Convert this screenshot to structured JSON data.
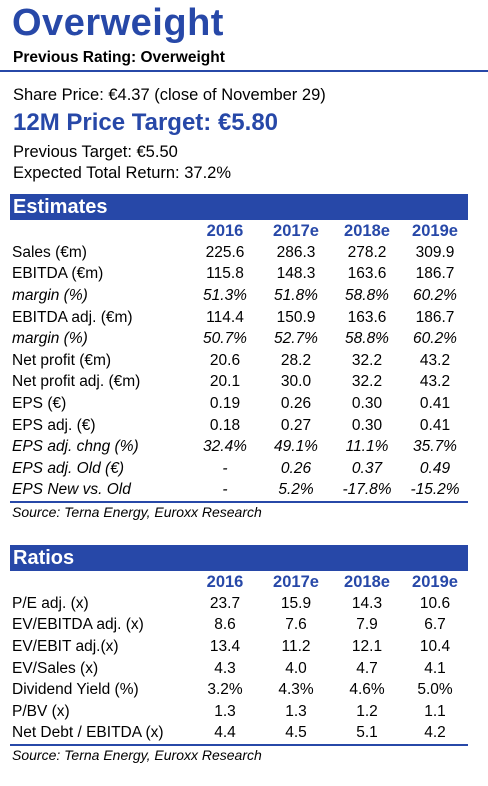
{
  "header": {
    "rating": "Overweight",
    "previous_rating": "Previous Rating: Overweight",
    "share_price": "Share Price: €4.37 (close of  November 29)",
    "price_target": "12M Price Target: €5.80",
    "previous_target": "Previous Target: €5.50",
    "expected_return": "Expected Total Return: 37.2%"
  },
  "colors": {
    "accent": "#2748a8"
  },
  "estimates": {
    "title": "Estimates",
    "years": [
      "2016",
      "2017e",
      "2018e",
      "2019e"
    ],
    "rows": [
      {
        "label": "Sales (€m)",
        "italic": false,
        "values": [
          "225.6",
          "286.3",
          "278.2",
          "309.9"
        ]
      },
      {
        "label": "EBITDA (€m)",
        "italic": false,
        "values": [
          "115.8",
          "148.3",
          "163.6",
          "186.7"
        ]
      },
      {
        "label": "margin (%)",
        "italic": true,
        "values": [
          "51.3%",
          "51.8%",
          "58.8%",
          "60.2%"
        ]
      },
      {
        "label": "EBITDA adj. (€m)",
        "italic": false,
        "values": [
          "114.4",
          "150.9",
          "163.6",
          "186.7"
        ]
      },
      {
        "label": "margin (%)",
        "italic": true,
        "values": [
          "50.7%",
          "52.7%",
          "58.8%",
          "60.2%"
        ]
      },
      {
        "label": "Net profit (€m)",
        "italic": false,
        "values": [
          "20.6",
          "28.2",
          "32.2",
          "43.2"
        ]
      },
      {
        "label": "Net profit adj. (€m)",
        "italic": false,
        "values": [
          "20.1",
          "30.0",
          "32.2",
          "43.2"
        ]
      },
      {
        "label": "EPS (€)",
        "italic": false,
        "values": [
          "0.19",
          "0.26",
          "0.30",
          "0.41"
        ]
      },
      {
        "label": "EPS adj. (€)",
        "italic": false,
        "values": [
          "0.18",
          "0.27",
          "0.30",
          "0.41"
        ]
      },
      {
        "label": "EPS adj. chng (%)",
        "italic": true,
        "values": [
          "32.4%",
          "49.1%",
          "11.1%",
          "35.7%"
        ]
      },
      {
        "label": "EPS adj. Old (€)",
        "italic": true,
        "values": [
          "-",
          "0.26",
          "0.37",
          "0.49"
        ]
      },
      {
        "label": "EPS New vs. Old",
        "italic": true,
        "values": [
          "-",
          "5.2%",
          "-17.8%",
          "-15.2%"
        ]
      }
    ],
    "source": "Source: Terna Energy, Euroxx Research"
  },
  "ratios": {
    "title": "Ratios",
    "years": [
      "2016",
      "2017e",
      "2018e",
      "2019e"
    ],
    "rows": [
      {
        "label": "P/E adj. (x)",
        "italic": false,
        "values": [
          "23.7",
          "15.9",
          "14.3",
          "10.6"
        ]
      },
      {
        "label": "EV/EBITDA adj. (x)",
        "italic": false,
        "values": [
          "8.6",
          "7.6",
          "7.9",
          "6.7"
        ]
      },
      {
        "label": "EV/EBIT adj.(x)",
        "italic": false,
        "values": [
          "13.4",
          "11.2",
          "12.1",
          "10.4"
        ]
      },
      {
        "label": "EV/Sales (x)",
        "italic": false,
        "values": [
          "4.3",
          "4.0",
          "4.7",
          "4.1"
        ]
      },
      {
        "label": "Dividend Yield (%)",
        "italic": false,
        "values": [
          "3.2%",
          "4.3%",
          "4.6%",
          "5.0%"
        ]
      },
      {
        "label": "P/BV (x)",
        "italic": false,
        "values": [
          "1.3",
          "1.3",
          "1.2",
          "1.1"
        ]
      },
      {
        "label": "Net Debt / EBITDA (x)",
        "italic": false,
        "values": [
          "4.4",
          "4.5",
          "5.1",
          "4.2"
        ]
      }
    ],
    "source": "Source: Terna Energy, Euroxx Research"
  }
}
